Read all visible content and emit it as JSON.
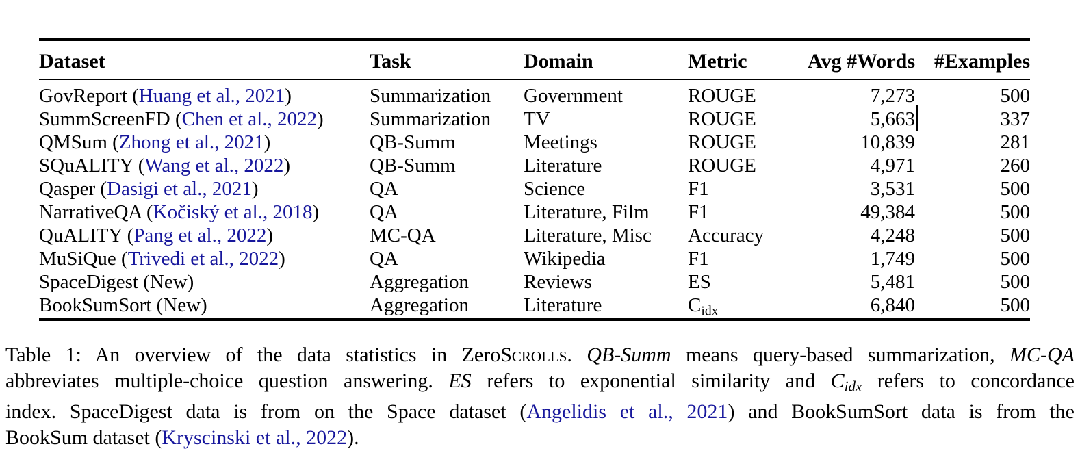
{
  "colors": {
    "link": "#17179c",
    "text": "#000000",
    "rule": "#000000"
  },
  "table": {
    "columns": [
      {
        "key": "dataset",
        "label": "Dataset"
      },
      {
        "key": "task",
        "label": "Task"
      },
      {
        "key": "domain",
        "label": "Domain"
      },
      {
        "key": "metric",
        "label": "Metric"
      },
      {
        "key": "avg_words",
        "label": "Avg #Words"
      },
      {
        "key": "examples",
        "label": "#Examples"
      }
    ],
    "rows": [
      {
        "dataset_name": "GovReport",
        "citation": "Huang et al., 2021",
        "cite_link": true,
        "task": "Summarization",
        "domain": "Government",
        "metric": "ROUGE",
        "avg_words": "7,273",
        "examples": "500"
      },
      {
        "dataset_name": "SummScreenFD",
        "citation": "Chen et al., 2022",
        "cite_link": true,
        "task": "Summarization",
        "domain": "TV",
        "metric": "ROUGE",
        "avg_words": "5,663",
        "examples": "337",
        "caret": true
      },
      {
        "dataset_name": "QMSum",
        "citation": "Zhong et al., 2021",
        "cite_link": true,
        "task": "QB-Summ",
        "domain": "Meetings",
        "metric": "ROUGE",
        "avg_words": "10,839",
        "examples": "281"
      },
      {
        "dataset_name": "SQuALITY",
        "citation": "Wang et al., 2022",
        "cite_link": true,
        "task": "QB-Summ",
        "domain": "Literature",
        "metric": "ROUGE",
        "avg_words": "4,971",
        "examples": "260"
      },
      {
        "dataset_name": "Qasper",
        "citation": "Dasigi et al., 2021",
        "cite_link": true,
        "task": "QA",
        "domain": "Science",
        "metric": "F1",
        "avg_words": "3,531",
        "examples": "500"
      },
      {
        "dataset_name": "NarrativeQA",
        "citation": "Kočiský et al., 2018",
        "cite_link": true,
        "task": "QA",
        "domain": "Literature, Film",
        "metric": "F1",
        "avg_words": "49,384",
        "examples": "500"
      },
      {
        "dataset_name": "QuALITY",
        "citation": "Pang et al., 2022",
        "cite_link": true,
        "task": "MC-QA",
        "domain": "Literature, Misc",
        "metric": "Accuracy",
        "avg_words": "4,248",
        "examples": "500"
      },
      {
        "dataset_name": "MuSiQue",
        "citation": "Trivedi et al., 2022",
        "cite_link": true,
        "task": "QA",
        "domain": "Wikipedia",
        "metric": "F1",
        "avg_words": "1,749",
        "examples": "500"
      },
      {
        "dataset_name": "SpaceDigest",
        "citation": "New",
        "cite_link": false,
        "task": "Aggregation",
        "domain": "Reviews",
        "metric": "ES",
        "avg_words": "5,481",
        "examples": "500"
      },
      {
        "dataset_name": "BookSumSort",
        "citation": "New",
        "cite_link": false,
        "task": "Aggregation",
        "domain": "Literature",
        "metric": "C",
        "metric_sub": "idx",
        "avg_words": "6,840",
        "examples": "500"
      }
    ]
  },
  "caption": {
    "lines": [
      [
        {
          "text": "Table 1: An overview of the data statistics in Zero",
          "style": "plain"
        },
        {
          "text": "Scrolls",
          "style": "sc"
        },
        {
          "text": ". ",
          "style": "plain"
        },
        {
          "text": "QB-Summ",
          "style": "italic"
        },
        {
          "text": " means query-based summarization, ",
          "style": "plain"
        },
        {
          "text": "MC-QA",
          "style": "italic"
        }
      ],
      [
        {
          "text": "abbreviates multiple-choice question answering. ",
          "style": "plain"
        },
        {
          "text": "ES",
          "style": "italic"
        },
        {
          "text": " refers to exponential similarity and ",
          "style": "plain"
        },
        {
          "text": "C",
          "style": "italic"
        },
        {
          "text": "idx",
          "style": "sub"
        },
        {
          "text": " refers to concordance",
          "style": "plain"
        }
      ],
      [
        {
          "text": "index. SpaceDigest data is from on the Space dataset (",
          "style": "plain"
        },
        {
          "text": "Angelidis et al., 2021",
          "style": "link"
        },
        {
          "text": ") and BookSumSort data is from the",
          "style": "plain"
        }
      ],
      [
        {
          "text": "BookSum dataset (",
          "style": "plain"
        },
        {
          "text": "Kryscinski et al., 2022",
          "style": "link"
        },
        {
          "text": ").",
          "style": "plain"
        }
      ]
    ]
  }
}
